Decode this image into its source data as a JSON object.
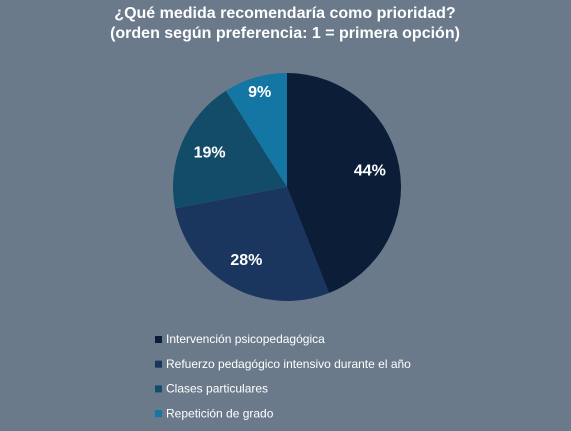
{
  "chart_data": {
    "type": "pie",
    "title": "¿Qué medida recomendaría como prioridad? (orden según preferencia: 1 = primera opción)",
    "categories": [
      "Intervención psicopedagógica",
      "Refuerzo pedagógico intensivo durante el año",
      "Clases particulares",
      "Repetición de grado"
    ],
    "values": [
      44,
      28,
      19,
      9
    ],
    "value_labels": [
      "44%",
      "28%",
      "19%",
      "9%"
    ],
    "colors": [
      "#0c1d38",
      "#1a365f",
      "#134c69",
      "#1476a3"
    ],
    "legend": "bottom"
  }
}
